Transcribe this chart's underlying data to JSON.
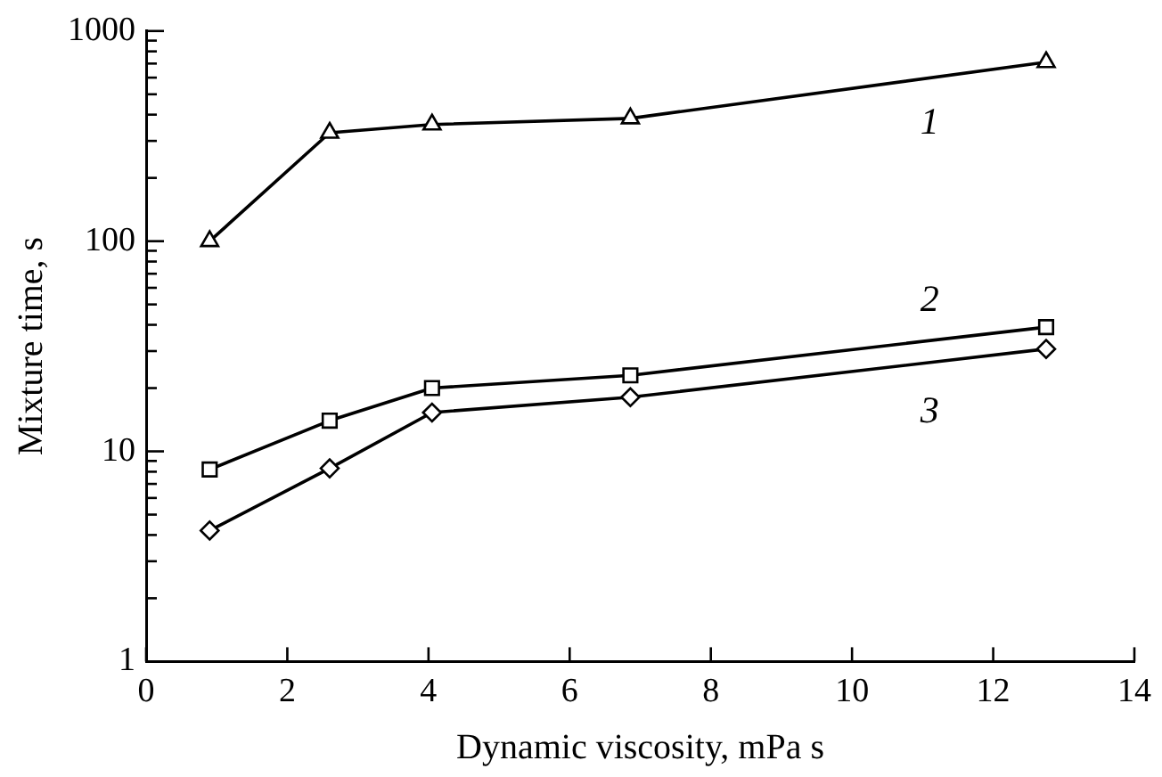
{
  "chart_data": {
    "type": "line",
    "xlabel": "Dynamic viscosity, mPa s",
    "ylabel": "Mixture time, s",
    "x": [
      0.9,
      2.6,
      4.05,
      6.86,
      12.75
    ],
    "series": [
      {
        "name": "1",
        "color": "#000000",
        "marker": "triangle",
        "values": [
          100,
          328,
          359,
          384,
          711
        ]
      },
      {
        "name": "2",
        "color": "#000000",
        "marker": "square",
        "values": [
          8.2,
          14,
          20,
          23,
          39
        ]
      },
      {
        "name": "3",
        "color": "#000000",
        "marker": "diamond",
        "values": [
          4.2,
          8.3,
          15.3,
          18.1,
          30.7
        ]
      }
    ],
    "xlim": [
      0,
      14
    ],
    "xticks": [
      0,
      2,
      4,
      6,
      8,
      10,
      12,
      14
    ],
    "ylim": [
      1,
      1000
    ],
    "yticks": [
      1,
      10,
      100,
      1000
    ],
    "log": "y",
    "grid": false,
    "legend": false,
    "line_style": "solid"
  }
}
